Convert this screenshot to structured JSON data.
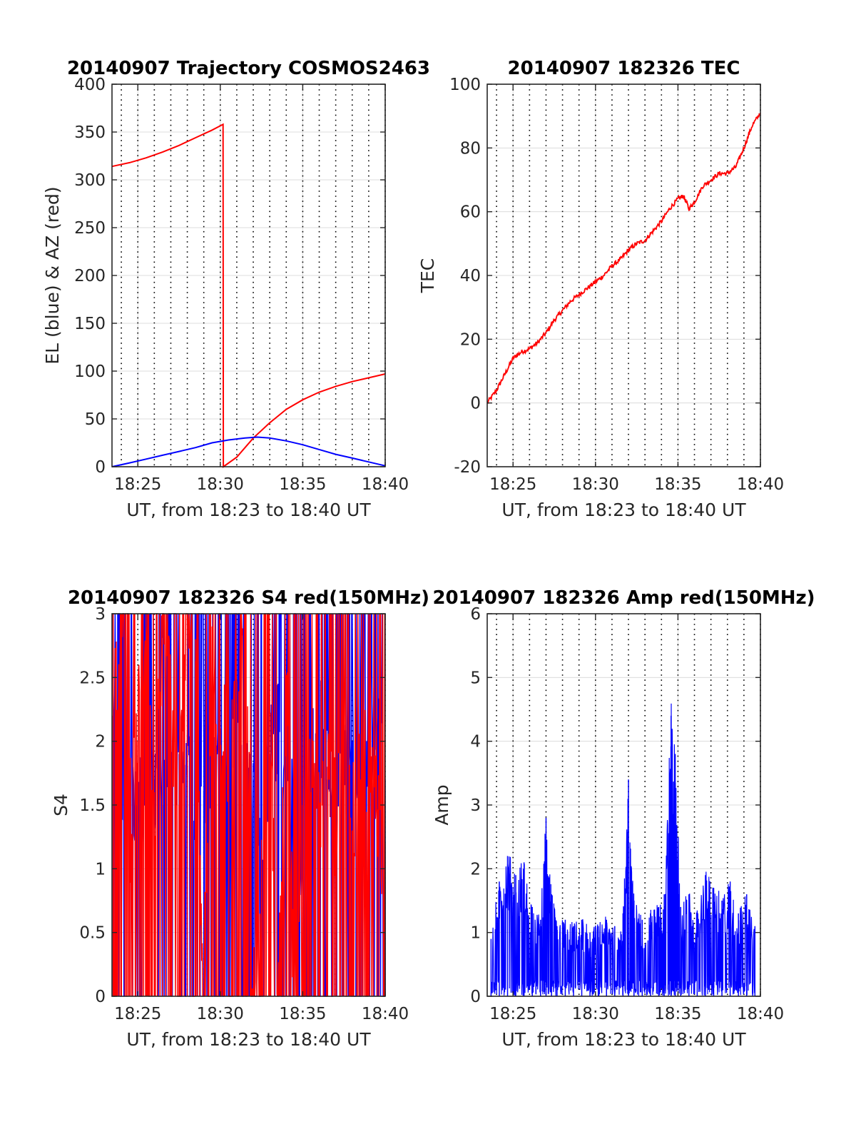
{
  "chart_data": [
    {
      "type": "line",
      "title": "20140907 Trajectory COSMOS2463",
      "xlabel": "UT, from 18:23 to 18:40 UT",
      "ylabel": "EL (blue) & AZ (red)",
      "xlim": [
        "18:23:26",
        "18:40:00"
      ],
      "ylim": [
        0,
        400
      ],
      "xticks": [
        "18:25",
        "18:30",
        "18:35",
        "18:40"
      ],
      "yticks": [
        0,
        50,
        100,
        150,
        200,
        250,
        300,
        350,
        400
      ],
      "grid": true,
      "series": [
        {
          "color": "#ff0000",
          "x": [
            "18:23:26",
            "18:24:30",
            "18:25:30",
            "18:26:30",
            "18:27:30",
            "18:28:30",
            "18:29:30",
            "18:30:10",
            "18:30:11",
            "18:31:00",
            "18:31:30",
            "18:32:00",
            "18:33:00",
            "18:34:00",
            "18:35:00",
            "18:36:00",
            "18:37:00",
            "18:38:00",
            "18:39:00",
            "18:40:00"
          ],
          "values": [
            314,
            318,
            323,
            329,
            336,
            344,
            352,
            358,
            0,
            10,
            20,
            30,
            46,
            60,
            70,
            78,
            84,
            89,
            93,
            97
          ]
        },
        {
          "color": "#0000ff",
          "x": [
            "18:23:26",
            "18:24:30",
            "18:25:30",
            "18:26:30",
            "18:27:30",
            "18:28:30",
            "18:29:30",
            "18:30:30",
            "18:31:30",
            "18:32:15",
            "18:33:00",
            "18:34:00",
            "18:35:00",
            "18:36:00",
            "18:37:00",
            "18:38:00",
            "18:39:00",
            "18:40:00"
          ],
          "values": [
            0,
            4,
            8,
            12,
            16,
            20,
            25,
            28,
            30,
            31,
            30,
            27,
            23,
            18,
            13,
            9,
            5,
            1
          ]
        }
      ]
    },
    {
      "type": "line",
      "title": "20140907 182326 TEC",
      "xlabel": "UT, from 18:23 to 18:40 UT",
      "ylabel": "TEC",
      "xlim": [
        "18:23:26",
        "18:40:00"
      ],
      "ylim": [
        -20,
        100
      ],
      "xticks": [
        "18:25",
        "18:30",
        "18:35",
        "18:40"
      ],
      "yticks": [
        -20,
        0,
        20,
        40,
        60,
        80,
        100
      ],
      "grid": true,
      "series": [
        {
          "color": "#ff0000",
          "x": [
            "18:23:26",
            "18:24:00",
            "18:24:30",
            "18:25:00",
            "18:25:30",
            "18:26:00",
            "18:26:30",
            "18:27:00",
            "18:27:30",
            "18:28:00",
            "18:28:30",
            "18:29:00",
            "18:29:30",
            "18:30:00",
            "18:30:30",
            "18:31:00",
            "18:31:30",
            "18:32:00",
            "18:32:30",
            "18:33:00",
            "18:33:30",
            "18:34:00",
            "18:34:30",
            "18:35:00",
            "18:35:20",
            "18:35:40",
            "18:36:00",
            "18:36:30",
            "18:37:00",
            "18:37:30",
            "18:38:00",
            "18:38:30",
            "18:39:00",
            "18:39:30",
            "18:40:00"
          ],
          "values": [
            0,
            4,
            9,
            14,
            16,
            17,
            19,
            22,
            26,
            29,
            32,
            34,
            36,
            38,
            40,
            43,
            45,
            48,
            50,
            51,
            54,
            57,
            61,
            64,
            65,
            61,
            63,
            68,
            70,
            72,
            72,
            74,
            80,
            87,
            91
          ]
        }
      ]
    },
    {
      "type": "line",
      "title": "20140907 182326 S4 red(150MHz)",
      "xlabel": "UT, from 18:23 to 18:40 UT",
      "ylabel": "S4",
      "xlim": [
        "18:23:26",
        "18:40:00"
      ],
      "ylim": [
        0,
        3
      ],
      "xticks": [
        "18:25",
        "18:30",
        "18:35",
        "18:40"
      ],
      "yticks": [
        0,
        0.5,
        1,
        1.5,
        2,
        2.5,
        3
      ],
      "grid": true,
      "series": [
        {
          "color": "#0000ff",
          "x": [
            "18:23:30",
            "18:24:00",
            "18:24:30",
            "18:25:00",
            "18:25:30",
            "18:26:00",
            "18:26:30",
            "18:27:00",
            "18:27:30",
            "18:28:00",
            "18:28:30",
            "18:29:00",
            "18:29:30",
            "18:30:00",
            "18:30:30",
            "18:31:00",
            "18:31:30",
            "18:32:00",
            "18:32:30",
            "18:33:00",
            "18:33:30",
            "18:34:00",
            "18:34:30",
            "18:35:00",
            "18:35:30",
            "18:36:00",
            "18:36:30",
            "18:37:00",
            "18:37:30",
            "18:38:00",
            "18:38:30",
            "18:39:00",
            "18:39:30",
            "18:40:00"
          ],
          "values": [
            2.2,
            1.8,
            1.6,
            1.5,
            1.4,
            1.7,
            1.5,
            1.6,
            1.9,
            1.8,
            1.5,
            1.6,
            1.9,
            1.7,
            2.0,
            1.8,
            1.6,
            1.7,
            1.2,
            1.9,
            2.1,
            1.6,
            1.5,
            0.8,
            2.1,
            2.2,
            1.7,
            1.5,
            1.8,
            2.0,
            1.9,
            2.0,
            2.1,
            1.7
          ]
        },
        {
          "color": "#ff0000",
          "x": [
            "18:23:30",
            "18:24:00",
            "18:24:30",
            "18:25:00",
            "18:25:30",
            "18:26:00",
            "18:26:30",
            "18:27:00",
            "18:27:30",
            "18:28:00",
            "18:28:30",
            "18:29:00",
            "18:29:30",
            "18:30:00",
            "18:30:30",
            "18:31:00",
            "18:31:30",
            "18:32:00",
            "18:32:30",
            "18:33:00",
            "18:33:30",
            "18:34:00",
            "18:34:30",
            "18:35:00",
            "18:35:30",
            "18:36:00",
            "18:36:30",
            "18:37:00",
            "18:37:30",
            "18:38:00",
            "18:38:30",
            "18:39:00",
            "18:39:30",
            "18:40:00"
          ],
          "values": [
            2.2,
            3.0,
            1.3,
            2.0,
            3.0,
            1.6,
            3.0,
            2.4,
            1.5,
            3.0,
            2.8,
            0.0,
            2.9,
            2.1,
            2.0,
            2.3,
            2.9,
            0.0,
            1.0,
            1.9,
            0.0,
            2.4,
            0.0,
            1.5,
            1.6,
            1.3,
            1.8,
            1.4,
            2.2,
            1.3,
            1.7,
            1.8,
            1.4,
            1.2
          ]
        }
      ]
    },
    {
      "type": "line",
      "title": "20140907 182326 Amp red(150MHz)",
      "xlabel": "UT, from 18:23 to 18:40 UT",
      "ylabel": "Amp",
      "xlim": [
        "18:23:26",
        "18:40:00"
      ],
      "ylim": [
        0,
        6
      ],
      "xticks": [
        "18:25",
        "18:30",
        "18:35",
        "18:40"
      ],
      "yticks": [
        0,
        1,
        2,
        3,
        4,
        5,
        6
      ],
      "grid": true,
      "series": [
        {
          "color": "#0000ff",
          "x": [
            "18:23:40",
            "18:24:10",
            "18:24:40",
            "18:25:10",
            "18:25:40",
            "18:26:10",
            "18:26:40",
            "18:27:00",
            "18:27:20",
            "18:27:40",
            "18:28:10",
            "18:28:40",
            "18:29:10",
            "18:29:40",
            "18:30:10",
            "18:30:40",
            "18:31:10",
            "18:31:40",
            "18:32:00",
            "18:32:20",
            "18:32:50",
            "18:33:20",
            "18:33:50",
            "18:34:10",
            "18:34:35",
            "18:34:50",
            "18:35:10",
            "18:35:40",
            "18:36:10",
            "18:36:40",
            "18:37:10",
            "18:37:40",
            "18:38:10",
            "18:38:40",
            "18:39:10",
            "18:39:40"
          ],
          "values": [
            0.9,
            1.8,
            2.2,
            1.9,
            2.1,
            1.4,
            1.2,
            2.8,
            1.6,
            1.1,
            1.2,
            1.1,
            1.2,
            1.0,
            1.1,
            1.2,
            1.1,
            1.3,
            3.4,
            1.5,
            1.2,
            1.3,
            1.4,
            1.6,
            4.4,
            3.8,
            1.4,
            1.6,
            1.3,
            1.9,
            1.7,
            1.5,
            1.8,
            1.3,
            1.6,
            1.1
          ]
        }
      ]
    }
  ]
}
